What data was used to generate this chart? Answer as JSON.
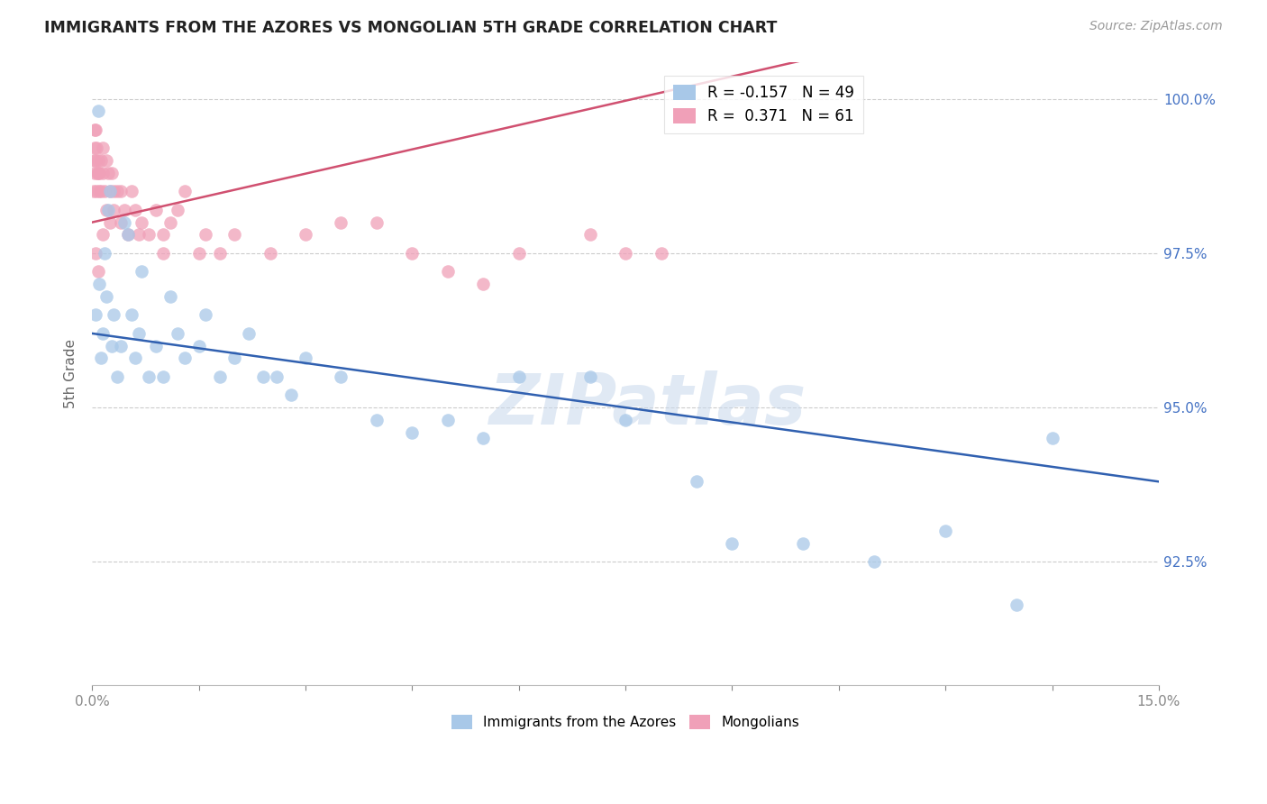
{
  "title": "IMMIGRANTS FROM THE AZORES VS MONGOLIAN 5TH GRADE CORRELATION CHART",
  "source": "Source: ZipAtlas.com",
  "ylabel": "5th Grade",
  "yticks": [
    100.0,
    97.5,
    95.0,
    92.5
  ],
  "ytick_labels": [
    "100.0%",
    "97.5%",
    "95.0%",
    "92.5%"
  ],
  "xmin": 0.0,
  "xmax": 15.0,
  "ymin": 90.5,
  "ymax": 100.6,
  "blue_R": -0.157,
  "blue_N": 49,
  "pink_R": 0.371,
  "pink_N": 61,
  "blue_color": "#A8C8E8",
  "pink_color": "#F0A0B8",
  "blue_line_color": "#3060B0",
  "pink_line_color": "#D05070",
  "legend_blue_label": "Immigrants from the Azores",
  "legend_pink_label": "Mongolians",
  "watermark": "ZIPatlas",
  "blue_x": [
    0.05,
    0.08,
    0.1,
    0.12,
    0.15,
    0.18,
    0.2,
    0.22,
    0.25,
    0.28,
    0.3,
    0.35,
    0.4,
    0.45,
    0.5,
    0.55,
    0.6,
    0.65,
    0.7,
    0.8,
    0.9,
    1.0,
    1.1,
    1.2,
    1.3,
    1.5,
    1.6,
    1.8,
    2.0,
    2.2,
    2.4,
    2.6,
    2.8,
    3.0,
    3.5,
    4.0,
    4.5,
    5.0,
    5.5,
    6.0,
    7.0,
    7.5,
    8.5,
    9.0,
    10.0,
    11.0,
    12.0,
    13.0,
    13.5
  ],
  "blue_y": [
    96.5,
    99.8,
    97.0,
    95.8,
    96.2,
    97.5,
    96.8,
    98.2,
    98.5,
    96.0,
    96.5,
    95.5,
    96.0,
    98.0,
    97.8,
    96.5,
    95.8,
    96.2,
    97.2,
    95.5,
    96.0,
    95.5,
    96.8,
    96.2,
    95.8,
    96.0,
    96.5,
    95.5,
    95.8,
    96.2,
    95.5,
    95.5,
    95.2,
    95.8,
    95.5,
    94.8,
    94.6,
    94.8,
    94.5,
    95.5,
    95.5,
    94.8,
    93.8,
    92.8,
    92.8,
    92.5,
    93.0,
    91.8,
    94.5
  ],
  "pink_x": [
    0.02,
    0.02,
    0.03,
    0.04,
    0.04,
    0.05,
    0.05,
    0.06,
    0.06,
    0.07,
    0.08,
    0.08,
    0.1,
    0.1,
    0.12,
    0.12,
    0.15,
    0.15,
    0.18,
    0.2,
    0.2,
    0.22,
    0.25,
    0.25,
    0.28,
    0.3,
    0.3,
    0.35,
    0.4,
    0.4,
    0.45,
    0.5,
    0.55,
    0.6,
    0.65,
    0.7,
    0.8,
    0.9,
    1.0,
    1.0,
    1.1,
    1.2,
    1.3,
    1.5,
    1.6,
    1.8,
    2.0,
    2.5,
    3.0,
    3.5,
    4.0,
    4.5,
    5.0,
    5.5,
    6.0,
    7.0,
    7.5,
    8.0,
    0.05,
    0.08,
    0.15
  ],
  "pink_y": [
    99.0,
    98.5,
    99.2,
    98.8,
    99.5,
    99.5,
    99.0,
    98.5,
    99.2,
    98.8,
    99.0,
    98.8,
    98.5,
    98.8,
    99.0,
    98.5,
    99.2,
    98.8,
    98.5,
    98.2,
    99.0,
    98.8,
    98.5,
    98.0,
    98.8,
    98.5,
    98.2,
    98.5,
    98.0,
    98.5,
    98.2,
    97.8,
    98.5,
    98.2,
    97.8,
    98.0,
    97.8,
    98.2,
    97.8,
    97.5,
    98.0,
    98.2,
    98.5,
    97.5,
    97.8,
    97.5,
    97.8,
    97.5,
    97.8,
    98.0,
    98.0,
    97.5,
    97.2,
    97.0,
    97.5,
    97.8,
    97.5,
    97.5,
    97.5,
    97.2,
    97.8
  ]
}
